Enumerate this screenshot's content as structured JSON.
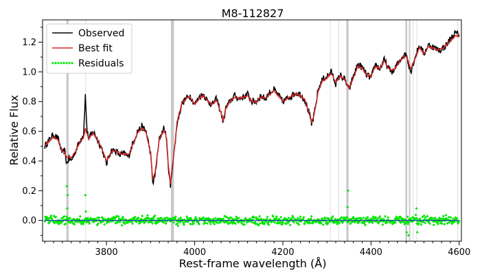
{
  "chart_data": {
    "type": "line",
    "title": "M8-112827",
    "xlabel": "Rest-frame wavelength (Å)",
    "ylabel": "Relative Flux",
    "xlim": [
      3655,
      4605
    ],
    "ylim": [
      -0.14,
      1.35
    ],
    "x_ticks": [
      3800,
      4000,
      4200,
      4400,
      4600
    ],
    "y_ticks": [
      0.0,
      0.2,
      0.4,
      0.6,
      0.8,
      1.0,
      1.2
    ],
    "x_tick_labels": [
      "3800",
      "4000",
      "4200",
      "4400",
      "4600"
    ],
    "y_tick_labels": [
      "0.0",
      "0.2",
      "0.4",
      "0.6",
      "0.8",
      "1.0",
      "1.2"
    ],
    "legend_position": "top-left",
    "legend": [
      {
        "name": "Observed",
        "color": "#000000",
        "style": "line"
      },
      {
        "name": "Best fit",
        "color": "#d62728",
        "style": "line"
      },
      {
        "name": "Residuals",
        "color": "#00e600",
        "style": "markers"
      }
    ],
    "masked_bands": [
      {
        "x": [
          3709,
          3714
        ],
        "shade": "dark"
      },
      {
        "x": [
          3752,
          3753
        ],
        "shade": "light"
      },
      {
        "x": [
          3946,
          3953
        ],
        "shade": "dark"
      },
      {
        "x": [
          4307,
          4308
        ],
        "shade": "light"
      },
      {
        "x": [
          4326,
          4327
        ],
        "shade": "light"
      },
      {
        "x": [
          4344,
          4349
        ],
        "shade": "dark"
      },
      {
        "x": [
          4478,
          4482
        ],
        "shade": "dark"
      },
      {
        "x": [
          4486,
          4489
        ],
        "shade": "dark"
      },
      {
        "x": [
          4495,
          4496
        ],
        "shade": "light"
      },
      {
        "x": [
          4503,
          4504
        ],
        "shade": "light"
      },
      {
        "x": [
          4596,
          4597
        ],
        "shade": "light"
      }
    ],
    "series": [
      {
        "name": "Observed",
        "color": "#000000",
        "x": [
          3660,
          3670,
          3680,
          3690,
          3700,
          3705,
          3710,
          3715,
          3720,
          3730,
          3740,
          3748,
          3752,
          3756,
          3760,
          3770,
          3780,
          3790,
          3800,
          3810,
          3820,
          3830,
          3840,
          3850,
          3860,
          3870,
          3880,
          3890,
          3900,
          3905,
          3910,
          3920,
          3930,
          3935,
          3940,
          3945,
          3950,
          3955,
          3960,
          3970,
          3980,
          3990,
          4000,
          4010,
          4020,
          4030,
          4040,
          4050,
          4060,
          4065,
          4070,
          4080,
          4090,
          4100,
          4110,
          4120,
          4130,
          4140,
          4150,
          4160,
          4170,
          4180,
          4190,
          4200,
          4210,
          4220,
          4230,
          4240,
          4250,
          4260,
          4265,
          4270,
          4275,
          4280,
          4290,
          4300,
          4310,
          4320,
          4330,
          4340,
          4350,
          4360,
          4370,
          4380,
          4390,
          4400,
          4410,
          4420,
          4430,
          4440,
          4450,
          4460,
          4470,
          4480,
          4490,
          4500,
          4510,
          4520,
          4530,
          4540,
          4550,
          4560,
          4570,
          4580,
          4590,
          4600
        ],
        "y": [
          0.5,
          0.54,
          0.58,
          0.55,
          0.45,
          0.47,
          0.38,
          0.42,
          0.4,
          0.47,
          0.54,
          0.58,
          0.84,
          0.6,
          0.55,
          0.6,
          0.54,
          0.48,
          0.38,
          0.47,
          0.47,
          0.44,
          0.45,
          0.43,
          0.52,
          0.6,
          0.63,
          0.6,
          0.45,
          0.25,
          0.3,
          0.55,
          0.62,
          0.58,
          0.38,
          0.22,
          0.38,
          0.5,
          0.65,
          0.78,
          0.82,
          0.84,
          0.78,
          0.83,
          0.85,
          0.8,
          0.78,
          0.82,
          0.72,
          0.66,
          0.75,
          0.8,
          0.84,
          0.82,
          0.83,
          0.85,
          0.8,
          0.8,
          0.84,
          0.82,
          0.86,
          0.88,
          0.84,
          0.8,
          0.82,
          0.84,
          0.86,
          0.85,
          0.81,
          0.72,
          0.64,
          0.7,
          0.78,
          0.88,
          0.95,
          0.97,
          1.0,
          0.92,
          0.98,
          0.95,
          0.88,
          0.97,
          1.05,
          1.03,
          0.98,
          0.96,
          1.05,
          1.02,
          1.08,
          1.02,
          1.0,
          1.05,
          1.1,
          1.12,
          1.0,
          1.1,
          1.18,
          1.12,
          1.18,
          1.17,
          1.15,
          1.15,
          1.18,
          1.22,
          1.26,
          1.25
        ]
      },
      {
        "name": "Best fit",
        "color": "#d62728",
        "x": [
          3660,
          3670,
          3680,
          3690,
          3700,
          3705,
          3710,
          3715,
          3720,
          3730,
          3740,
          3748,
          3752,
          3756,
          3760,
          3770,
          3780,
          3790,
          3800,
          3810,
          3820,
          3830,
          3840,
          3850,
          3860,
          3870,
          3880,
          3890,
          3900,
          3905,
          3910,
          3920,
          3930,
          3935,
          3940,
          3945,
          3950,
          3955,
          3960,
          3970,
          3980,
          3990,
          4000,
          4010,
          4020,
          4030,
          4040,
          4050,
          4060,
          4065,
          4070,
          4080,
          4090,
          4100,
          4110,
          4120,
          4130,
          4140,
          4150,
          4160,
          4170,
          4180,
          4190,
          4200,
          4210,
          4220,
          4230,
          4240,
          4250,
          4260,
          4265,
          4270,
          4275,
          4280,
          4290,
          4300,
          4310,
          4320,
          4330,
          4340,
          4350,
          4360,
          4370,
          4380,
          4390,
          4400,
          4410,
          4420,
          4430,
          4440,
          4450,
          4460,
          4470,
          4480,
          4490,
          4500,
          4510,
          4520,
          4530,
          4540,
          4550,
          4560,
          4570,
          4580,
          4590,
          4600
        ],
        "y": [
          0.51,
          0.53,
          0.56,
          0.54,
          0.46,
          0.46,
          0.42,
          0.43,
          0.42,
          0.47,
          0.53,
          0.56,
          0.62,
          0.58,
          0.55,
          0.59,
          0.54,
          0.48,
          0.4,
          0.46,
          0.47,
          0.45,
          0.45,
          0.44,
          0.51,
          0.59,
          0.62,
          0.59,
          0.45,
          0.28,
          0.32,
          0.55,
          0.61,
          0.57,
          0.38,
          0.25,
          0.38,
          0.5,
          0.66,
          0.78,
          0.82,
          0.83,
          0.78,
          0.82,
          0.84,
          0.8,
          0.78,
          0.81,
          0.72,
          0.67,
          0.75,
          0.8,
          0.83,
          0.82,
          0.83,
          0.84,
          0.8,
          0.8,
          0.83,
          0.82,
          0.85,
          0.87,
          0.84,
          0.8,
          0.82,
          0.84,
          0.85,
          0.84,
          0.81,
          0.72,
          0.66,
          0.7,
          0.78,
          0.87,
          0.94,
          0.96,
          0.99,
          0.93,
          0.97,
          0.95,
          0.89,
          0.96,
          1.04,
          1.02,
          0.98,
          0.97,
          1.04,
          1.02,
          1.07,
          1.02,
          1.01,
          1.05,
          1.09,
          1.11,
          1.02,
          1.09,
          1.17,
          1.12,
          1.17,
          1.16,
          1.15,
          1.15,
          1.18,
          1.21,
          1.24,
          1.24
        ]
      },
      {
        "name": "Residuals",
        "color": "#00e600",
        "baseline": 0.0,
        "spread": 0.04,
        "x_range": [
          3660,
          4600
        ],
        "outliers": [
          {
            "x": 3710,
            "y": 0.23
          },
          {
            "x": 3711,
            "y": 0.08
          },
          {
            "x": 3712,
            "y": 0.17
          },
          {
            "x": 3752,
            "y": 0.17
          },
          {
            "x": 3753,
            "y": 0.06
          },
          {
            "x": 4348,
            "y": 0.2
          },
          {
            "x": 4347,
            "y": 0.09
          },
          {
            "x": 4485,
            "y": -0.1
          },
          {
            "x": 4481,
            "y": -0.08
          },
          {
            "x": 4505,
            "y": -0.08
          },
          {
            "x": 4503,
            "y": 0.08
          }
        ]
      }
    ]
  }
}
